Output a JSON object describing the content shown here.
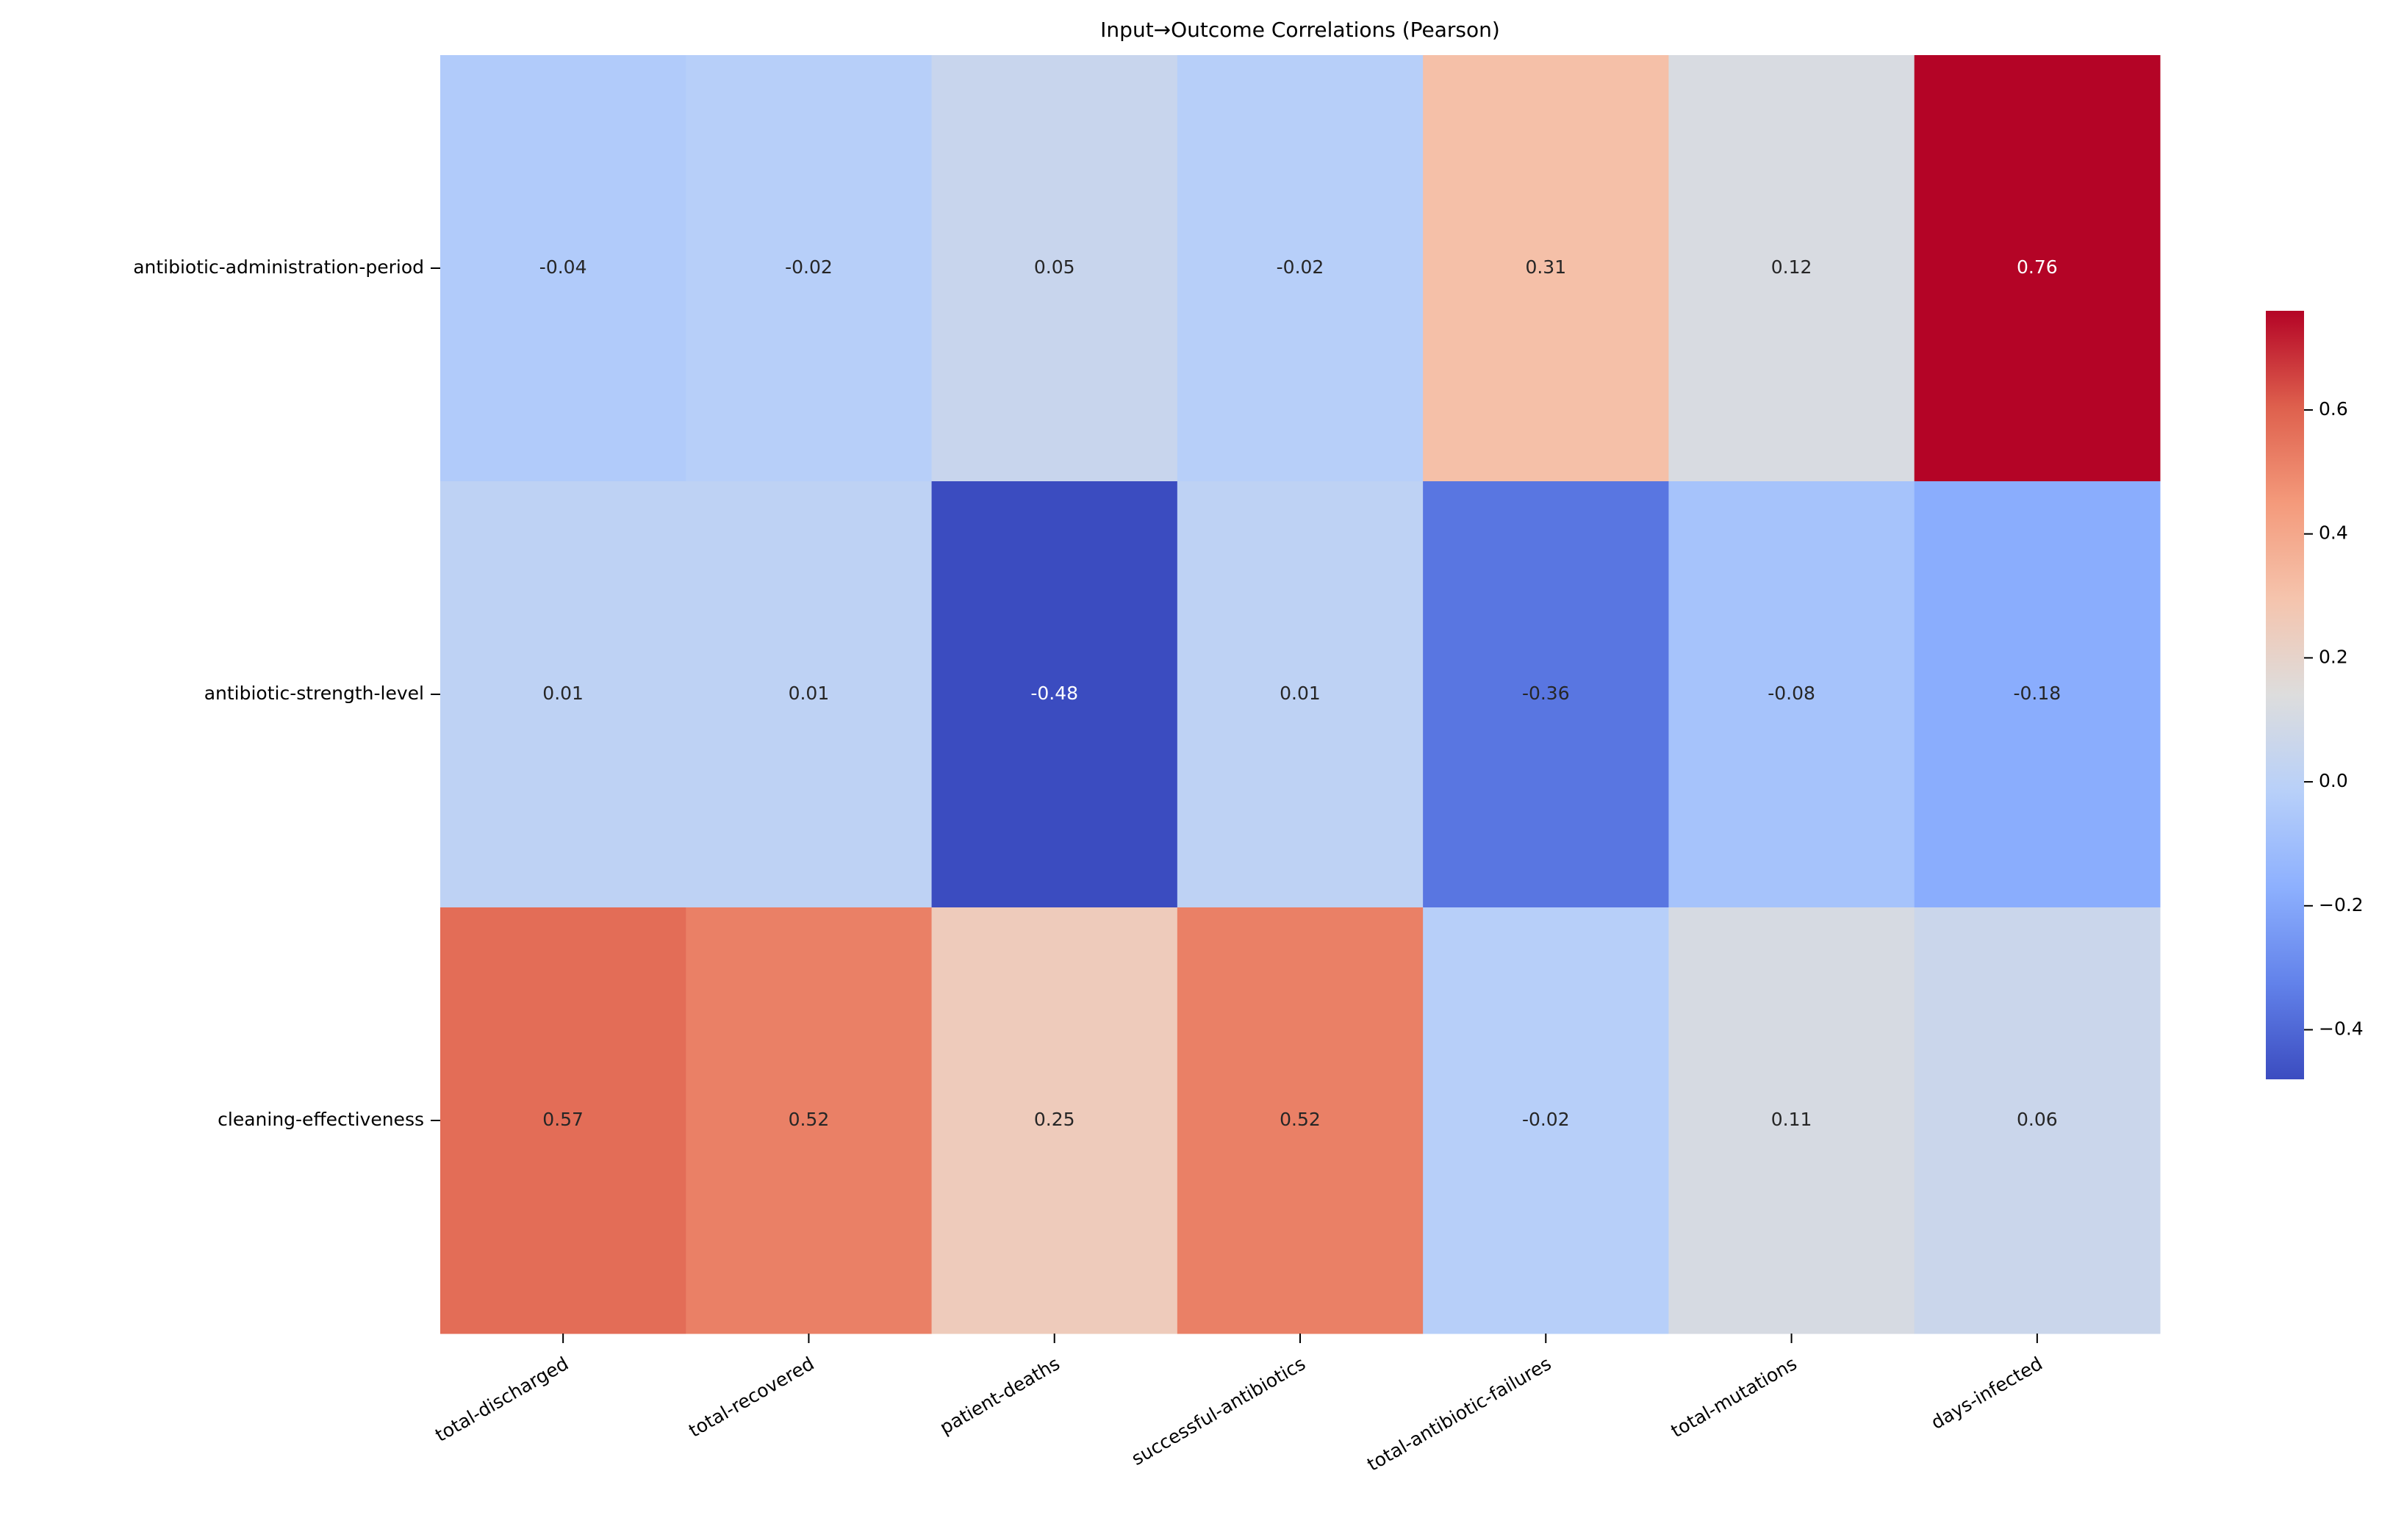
{
  "chart_data": {
    "type": "heatmap",
    "title": "Input→Outcome Correlations (Pearson)",
    "columns": [
      "total-discharged",
      "total-recovered",
      "patient-deaths",
      "successful-antibiotics",
      "total-antibiotic-failures",
      "total-mutations",
      "days-infected"
    ],
    "rows": [
      "antibiotic-administration-period",
      "antibiotic-strength-level",
      "cleaning-effectiveness"
    ],
    "values": [
      [
        -0.04,
        -0.02,
        0.05,
        -0.02,
        0.31,
        0.12,
        0.76
      ],
      [
        0.01,
        0.01,
        -0.48,
        0.01,
        -0.36,
        -0.08,
        -0.18
      ],
      [
        0.57,
        0.52,
        0.25,
        0.52,
        -0.02,
        0.11,
        0.06
      ]
    ],
    "colormap": "coolwarm",
    "zlim": [
      -0.48,
      0.76
    ],
    "zticks": [
      {
        "value": -0.4,
        "label": "−0.4"
      },
      {
        "value": -0.2,
        "label": "−0.2"
      },
      {
        "value": 0,
        "label": "0.0"
      },
      0.2,
      0.4,
      0.6
    ]
  }
}
